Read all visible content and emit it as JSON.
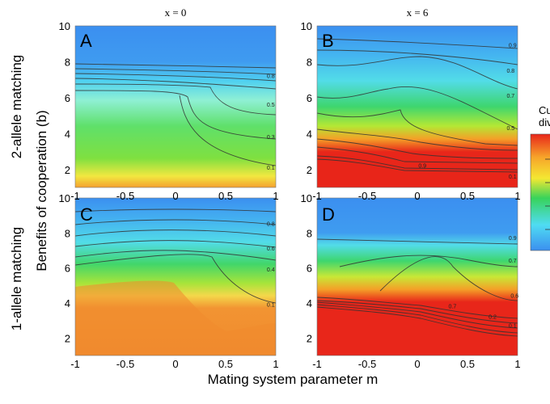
{
  "column_titles": [
    "x = 0",
    "x = 6"
  ],
  "row_titles": [
    "2-allele matching",
    "1-allele matching"
  ],
  "ylabel": "Benefits of cooperation (b)",
  "xlabel": "Mating system parameter m",
  "colorbar_title": [
    "Cue",
    "dive"
  ],
  "colors": {
    "high": "#e8261a",
    "mid_high": "#f4e832",
    "mid": "#38d35a",
    "mid_low": "#4fdcf2",
    "low": "#3b8ff0"
  },
  "chart_data": [
    {
      "type": "heatmap",
      "panel": "A",
      "column": "x = 0",
      "row": "2-allele matching",
      "xlim": [
        -1,
        1
      ],
      "ylim": [
        1,
        10
      ],
      "x_ticks": [
        "-1",
        "-0.5",
        "0",
        "0.5",
        "1"
      ],
      "y_ticks": [
        "2",
        "4",
        "6",
        "8",
        "10"
      ],
      "contour_labels": [
        {
          "text": "0.8",
          "x": 0.95,
          "y": 7.1
        },
        {
          "text": "0.5",
          "x": 0.95,
          "y": 5.5
        },
        {
          "text": "0.3",
          "x": 0.95,
          "y": 3.7
        },
        {
          "text": "0.1",
          "x": 0.95,
          "y": 2.0
        }
      ]
    },
    {
      "type": "heatmap",
      "panel": "B",
      "column": "x = 6",
      "row": "2-allele matching",
      "xlim": [
        -1,
        1
      ],
      "ylim": [
        1,
        10
      ],
      "x_ticks": [
        "-1",
        "-0.5",
        "0",
        "0.5",
        "1"
      ],
      "y_ticks": [
        "2",
        "4",
        "6",
        "8",
        "10"
      ],
      "contour_labels": [
        {
          "text": "0.9",
          "x": 0.95,
          "y": 8.8
        },
        {
          "text": "0.8",
          "x": 0.93,
          "y": 7.4
        },
        {
          "text": "0.7",
          "x": 0.93,
          "y": 6.0
        },
        {
          "text": "0.5",
          "x": 0.93,
          "y": 4.2
        },
        {
          "text": "0.9",
          "x": 0.05,
          "y": 2.1
        },
        {
          "text": "0.1",
          "x": 0.95,
          "y": 1.5
        }
      ]
    },
    {
      "type": "heatmap",
      "panel": "C",
      "column": "x = 0",
      "row": "1-allele matching",
      "xlim": [
        -1,
        1
      ],
      "ylim": [
        1,
        10
      ],
      "x_ticks": [
        "-1",
        "-0.5",
        "0",
        "0.5",
        "1"
      ],
      "y_ticks": [
        "2",
        "4",
        "6",
        "8",
        "10"
      ],
      "contour_labels": [
        {
          "text": "0.8",
          "x": 0.95,
          "y": 8.4
        },
        {
          "text": "0.6",
          "x": 0.95,
          "y": 7.0
        },
        {
          "text": "0.4",
          "x": 0.95,
          "y": 5.8
        },
        {
          "text": "0.1",
          "x": 0.95,
          "y": 3.8
        }
      ]
    },
    {
      "type": "heatmap",
      "panel": "D",
      "column": "x = 6",
      "row": "1-allele matching",
      "xlim": [
        -1,
        1
      ],
      "ylim": [
        1,
        10
      ],
      "x_ticks": [
        "-1",
        "-0.5",
        "0",
        "0.5",
        "1"
      ],
      "y_ticks": [
        "2",
        "4",
        "6",
        "8",
        "10"
      ],
      "contour_labels": [
        {
          "text": "0.9",
          "x": 0.95,
          "y": 7.6
        },
        {
          "text": "0.7",
          "x": 0.95,
          "y": 6.3
        },
        {
          "text": "0.6",
          "x": 0.97,
          "y": 4.3
        },
        {
          "text": "0.7",
          "x": 0.35,
          "y": 3.7
        },
        {
          "text": "0.2",
          "x": 0.75,
          "y": 3.1
        },
        {
          "text": "0.1",
          "x": 0.95,
          "y": 2.6
        }
      ]
    }
  ]
}
